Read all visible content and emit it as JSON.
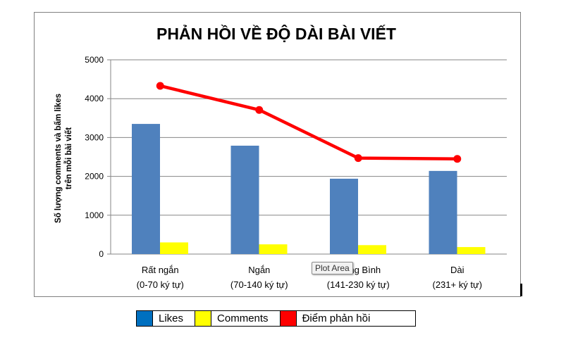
{
  "chart_data": {
    "type": "bar",
    "title": "PHẢN HỒI VỀ ĐỘ DÀI BÀI VIẾT",
    "ylabel_lines": [
      "Số lượng comments và bấm likes",
      "trên mỗi bài viết"
    ],
    "xlabel": "",
    "ylim": [
      0,
      5000
    ],
    "yticks": [
      0,
      1000,
      2000,
      3000,
      4000,
      5000
    ],
    "grid": true,
    "legend_position": "bottom",
    "categories": [
      [
        "Rất ngắn",
        "(0-70 ký tự)"
      ],
      [
        "Ngắn",
        "(70-140 ký tự)"
      ],
      [
        "Trung Bình",
        "(141-230 ký tự)"
      ],
      [
        "Dài",
        "(231+ ký tự)"
      ]
    ],
    "series": [
      {
        "name": "Likes",
        "type": "bar",
        "color": "#4f81bd",
        "values": [
          3350,
          2790,
          1940,
          2140
        ]
      },
      {
        "name": "Comments",
        "type": "bar",
        "color": "#ffff00",
        "values": [
          300,
          250,
          230,
          180
        ]
      },
      {
        "name": "Điểm phản hồi",
        "type": "line",
        "color": "#ff0000",
        "values": [
          4330,
          3710,
          2470,
          2450
        ]
      }
    ]
  },
  "tooltip": {
    "text": "Plot Area"
  },
  "legend": {
    "items": [
      {
        "label": "Likes",
        "color": "#0070c0"
      },
      {
        "label": "Comments",
        "color": "#ffff00"
      },
      {
        "label": "Điểm phản hồi",
        "color": "#ff0000"
      }
    ]
  }
}
